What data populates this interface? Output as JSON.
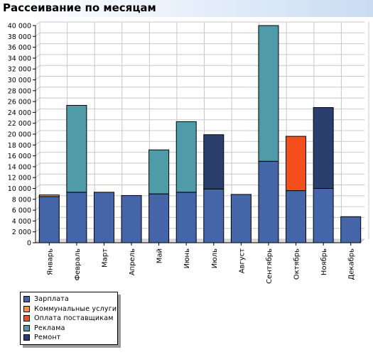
{
  "title": "Рассеивание по месяцам",
  "chart_data": {
    "type": "bar",
    "stacked": true,
    "title": "Рассеивание по месяцам",
    "categories": [
      "Январь",
      "Февраль",
      "Март",
      "Апрель",
      "Май",
      "Июнь",
      "Июль",
      "Август",
      "Сентябрь",
      "Октябрь",
      "Ноябрь",
      "Декабрь"
    ],
    "ylim": [
      0,
      40000
    ],
    "ytick_step": 2000,
    "yticks": [
      "0",
      "2 000",
      "4 000",
      "6 000",
      "8 000",
      "10 000",
      "12 000",
      "14 000",
      "16 000",
      "18 000",
      "20 000",
      "22 000",
      "24 000",
      "26 000",
      "28 000",
      "30 000",
      "32 000",
      "34 000",
      "36 000",
      "38 000",
      "40 000"
    ],
    "grid": true,
    "legend_position": "bottom-left",
    "series": [
      {
        "name": "Зарплата",
        "color": "#4466a8",
        "values": [
          8500,
          9300,
          9300,
          8700,
          9000,
          9300,
          9900,
          8900,
          15000,
          9600,
          10000,
          4800
        ]
      },
      {
        "name": "Коммунальные услуги",
        "color": "#f0954a",
        "values": [
          300,
          0,
          0,
          0,
          0,
          0,
          0,
          0,
          0,
          0,
          0,
          0
        ]
      },
      {
        "name": "Оплата поставщикам",
        "color": "#f24f1a",
        "values": [
          0,
          0,
          0,
          0,
          0,
          0,
          0,
          0,
          0,
          10000,
          0,
          0
        ]
      },
      {
        "name": "Реклама",
        "color": "#4f9ba8",
        "values": [
          0,
          16000,
          0,
          0,
          8100,
          13000,
          0,
          0,
          25000,
          0,
          0,
          0
        ]
      },
      {
        "name": "Ремонт",
        "color": "#2b3f6e",
        "values": [
          0,
          0,
          0,
          0,
          0,
          0,
          10000,
          0,
          0,
          0,
          14900,
          0
        ]
      }
    ]
  }
}
